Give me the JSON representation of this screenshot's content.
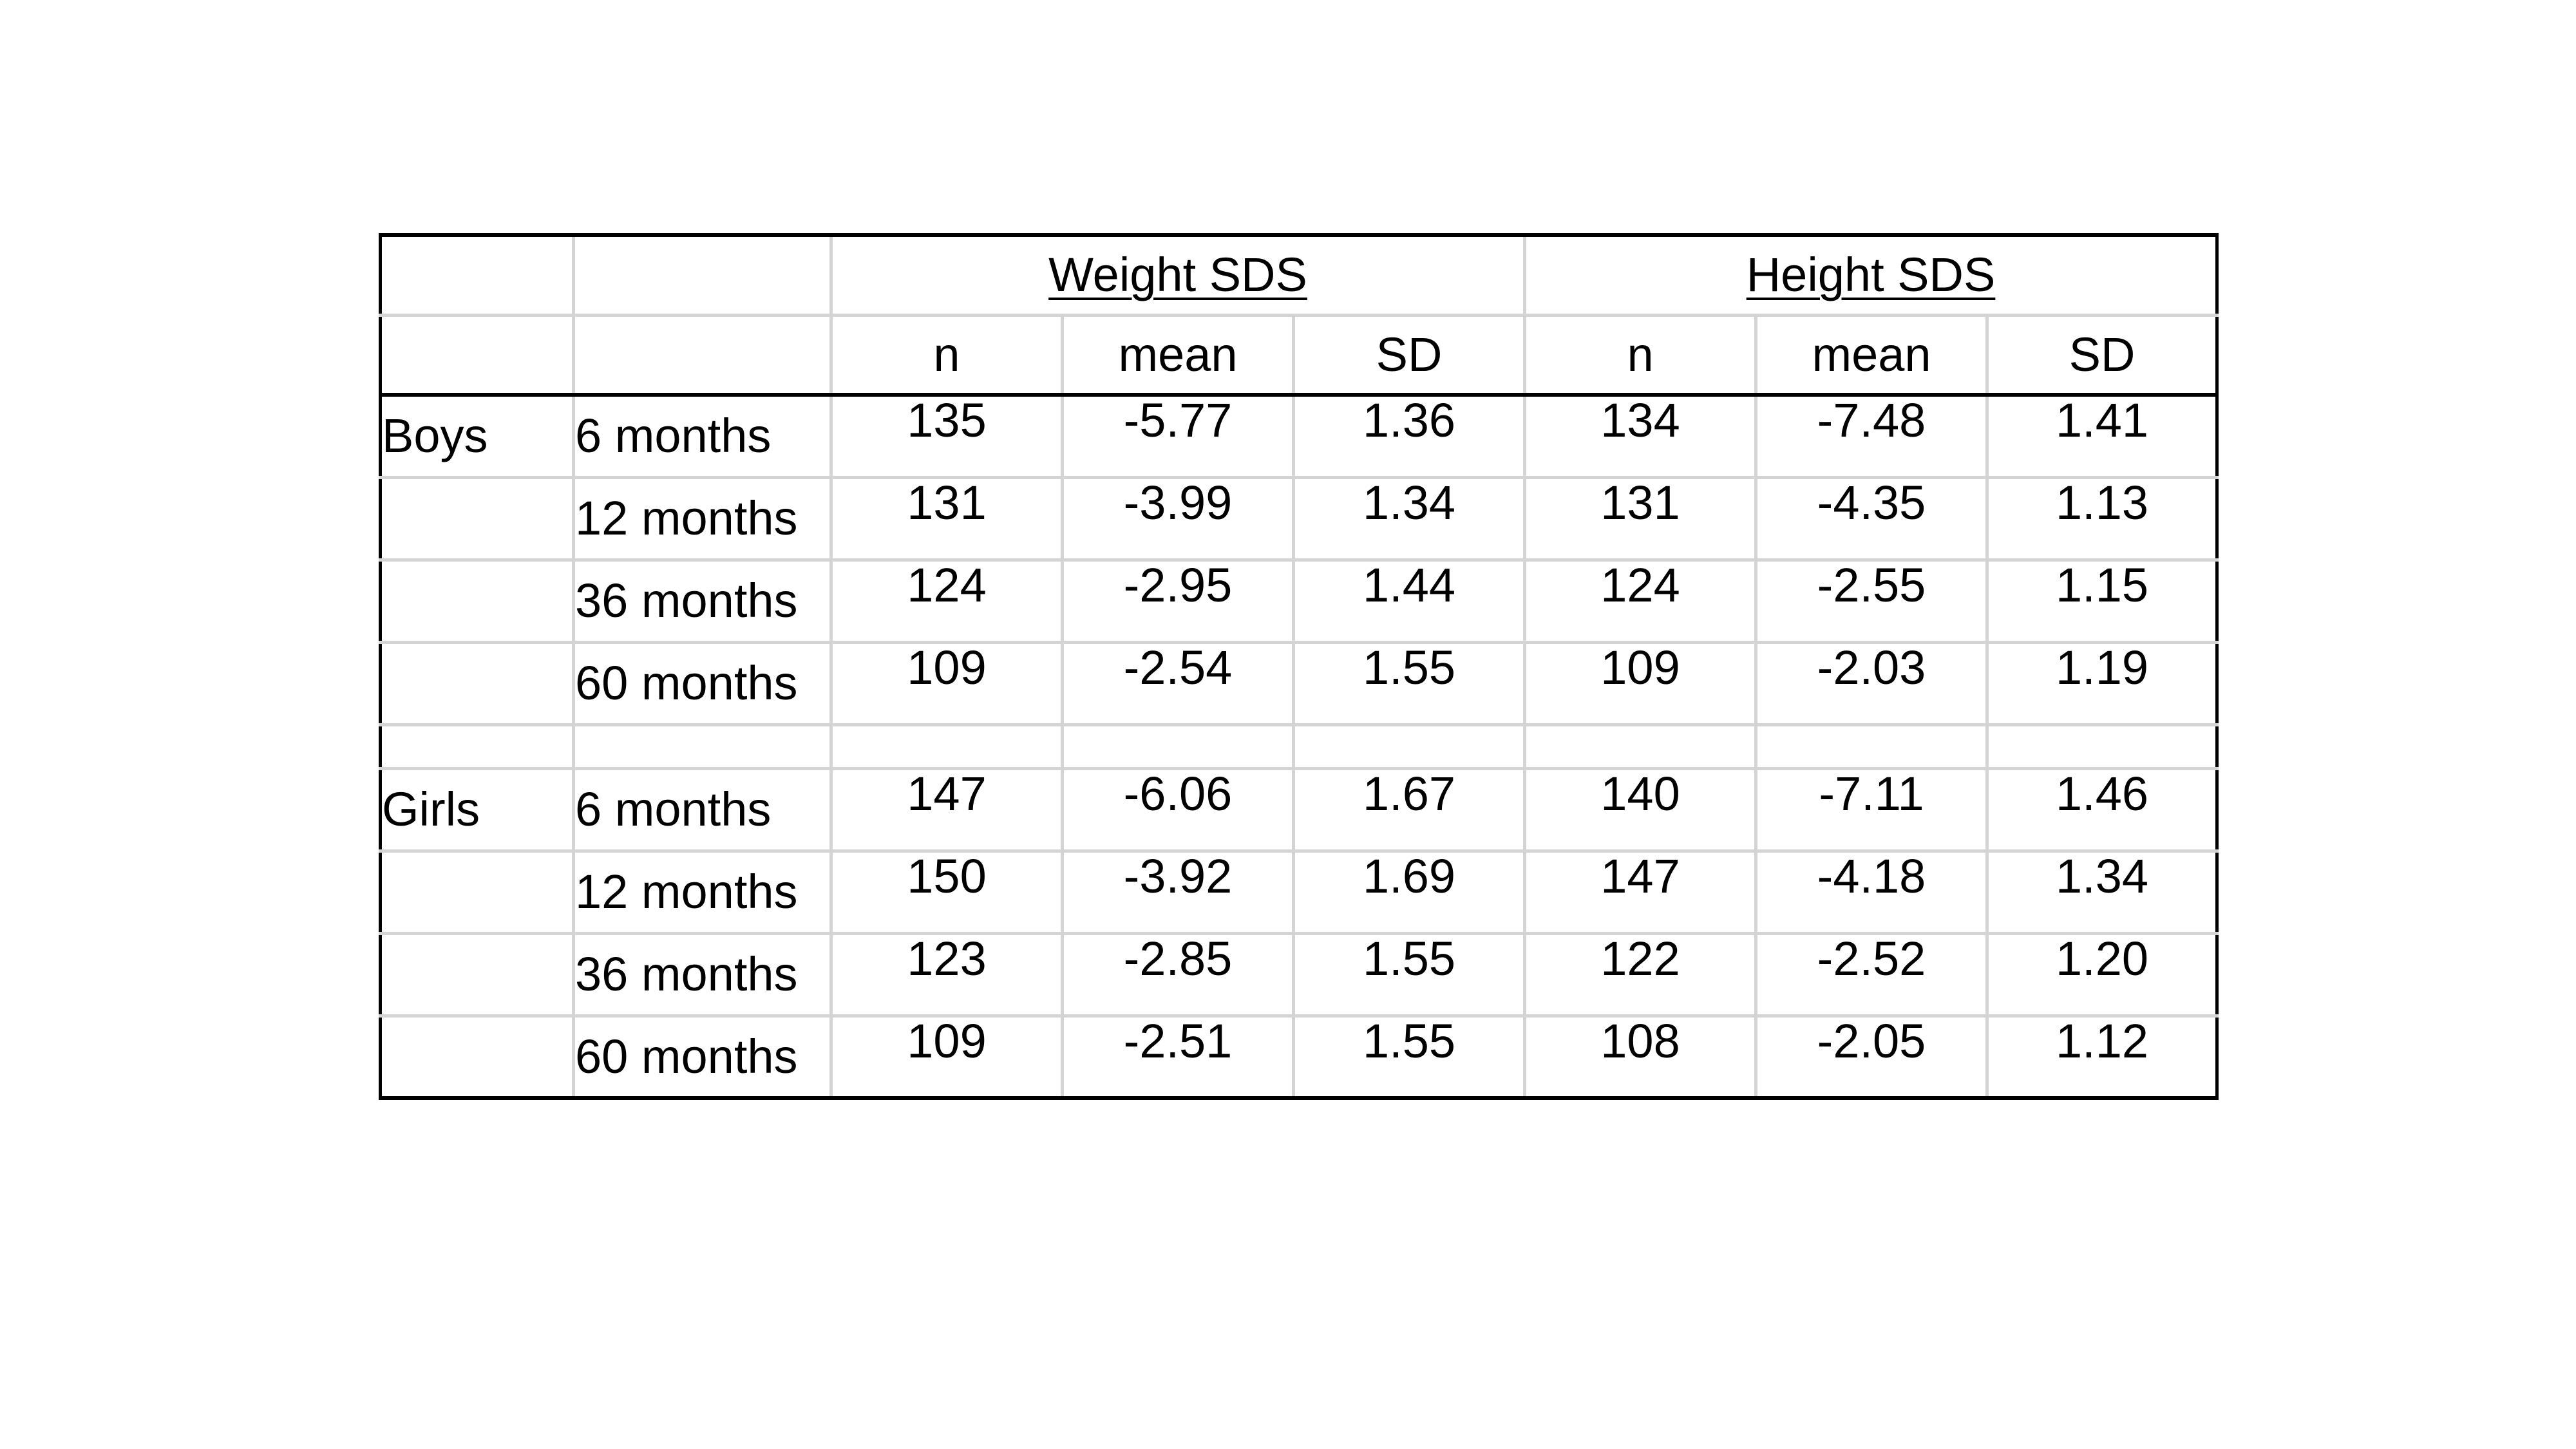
{
  "table": {
    "groups": [
      "Weight SDS",
      "Height SDS"
    ],
    "subheaders": [
      "n",
      "mean",
      "SD",
      "n",
      "mean",
      "SD"
    ],
    "sections": [
      {
        "label": "Boys",
        "rows": [
          {
            "age": "6 months",
            "values": [
              "135",
              "-5.77",
              "1.36",
              "134",
              "-7.48",
              "1.41"
            ]
          },
          {
            "age": "12 months",
            "values": [
              "131",
              "-3.99",
              "1.34",
              "131",
              "-4.35",
              "1.13"
            ]
          },
          {
            "age": "36 months",
            "values": [
              "124",
              "-2.95",
              "1.44",
              "124",
              "-2.55",
              "1.15"
            ]
          },
          {
            "age": "60 months",
            "values": [
              "109",
              "-2.54",
              "1.55",
              "109",
              "-2.03",
              "1.19"
            ]
          }
        ]
      },
      {
        "label": "Girls",
        "rows": [
          {
            "age": "6 months",
            "values": [
              "147",
              "-6.06",
              "1.67",
              "140",
              "-7.11",
              "1.46"
            ]
          },
          {
            "age": "12 months",
            "values": [
              "150",
              "-3.92",
              "1.69",
              "147",
              "-4.18",
              "1.34"
            ]
          },
          {
            "age": "36 months",
            "values": [
              "123",
              "-2.85",
              "1.55",
              "122",
              "-2.52",
              "1.20"
            ]
          },
          {
            "age": "60 months",
            "values": [
              "109",
              "-2.51",
              "1.55",
              "108",
              "-2.05",
              "1.12"
            ]
          }
        ]
      }
    ]
  }
}
